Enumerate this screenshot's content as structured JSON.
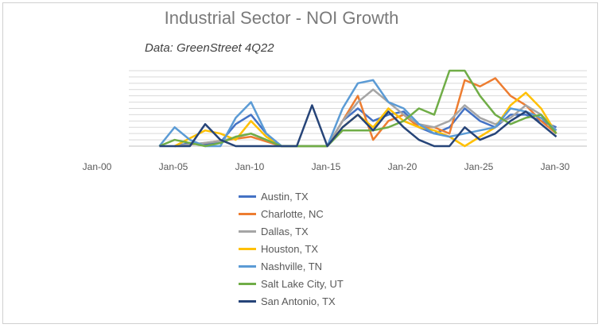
{
  "chart_data": {
    "type": "line",
    "title": "Industrial Sector - NOI Growth",
    "subtitle": "Data: GreenStreet 4Q22",
    "x_tick_labels": [
      "Jan-00",
      "Jan-05",
      "Jan-10",
      "Jan-15",
      "Jan-20",
      "Jan-25",
      "Jan-30"
    ],
    "x_range": [
      2000,
      2030
    ],
    "y_range": [
      0,
      12
    ],
    "grid": true,
    "legend_position": "bottom",
    "series": [
      {
        "name": "Austin, TX",
        "color": "#4472c4",
        "x": [
          2003,
          2004,
          2005,
          2006,
          2007,
          2008,
          2009,
          2010,
          2011,
          2012,
          2013,
          2014,
          2015,
          2016,
          2017,
          2018,
          2019,
          2020,
          2021,
          2022,
          2023,
          2024,
          2025,
          2026,
          2027,
          2028
        ],
        "y": [
          0,
          0.5,
          0.3,
          0.6,
          3.5,
          5,
          2,
          0,
          0,
          0,
          0,
          4,
          6,
          4,
          5,
          5.5,
          3,
          2,
          3,
          6,
          4,
          3,
          5,
          5,
          4,
          3
        ]
      },
      {
        "name": "Charlotte, NC",
        "color": "#ed7d31",
        "x": [
          2003,
          2005,
          2008,
          2010,
          2012,
          2013,
          2014,
          2015,
          2016,
          2017,
          2018,
          2019,
          2020,
          2021,
          2022,
          2023,
          2024,
          2025,
          2026,
          2027,
          2028
        ],
        "y": [
          0,
          0.5,
          1.5,
          0,
          0,
          0,
          4,
          8,
          1,
          4,
          5,
          3,
          3,
          2,
          10.5,
          9.5,
          10.8,
          8,
          6.5,
          4,
          2
        ]
      },
      {
        "name": "Dallas, TX",
        "color": "#a5a5a5",
        "x": [
          2003,
          2006,
          2008,
          2010,
          2012,
          2013,
          2014,
          2015,
          2016,
          2017,
          2018,
          2019,
          2020,
          2021,
          2022,
          2023,
          2024,
          2025,
          2026,
          2027,
          2028
        ],
        "y": [
          0,
          0.8,
          2,
          0,
          0,
          0,
          4,
          7,
          9,
          7,
          5,
          3.5,
          3,
          4,
          6.5,
          4.5,
          3.5,
          4.5,
          6.5,
          5,
          2.5
        ]
      },
      {
        "name": "Houston, TX",
        "color": "#ffc000",
        "x": [
          2003,
          2005,
          2006,
          2007,
          2008,
          2009,
          2010,
          2012,
          2013,
          2014,
          2015,
          2016,
          2017,
          2018,
          2019,
          2020,
          2021,
          2022,
          2023,
          2024,
          2025,
          2026,
          2027,
          2028
        ],
        "y": [
          0,
          2.5,
          2,
          1,
          4,
          1.5,
          0,
          0,
          0,
          3,
          5,
          3,
          6,
          4,
          3,
          2.5,
          1.5,
          0,
          1.5,
          3,
          6.5,
          8.5,
          6,
          2
        ]
      },
      {
        "name": "Nashville, TN",
        "color": "#5b9bd5",
        "x": [
          2002,
          2003,
          2004,
          2005,
          2006,
          2007,
          2008,
          2009,
          2010,
          2012,
          2013,
          2014,
          2015,
          2016,
          2017,
          2018,
          2019,
          2020,
          2021,
          2022,
          2023,
          2024,
          2025,
          2026,
          2027,
          2028
        ],
        "y": [
          0,
          3,
          1,
          0,
          0,
          4.5,
          7,
          2,
          0,
          0,
          0,
          6,
          10,
          10.5,
          7,
          6,
          3.5,
          2,
          1.5,
          2,
          2.5,
          3,
          6,
          5.5,
          4.5,
          2.5
        ]
      },
      {
        "name": "Salt Lake City, UT",
        "color": "#70ad47",
        "x": [
          2002,
          2003,
          2005,
          2006,
          2007,
          2008,
          2009,
          2010,
          2012,
          2013,
          2014,
          2015,
          2016,
          2017,
          2018,
          2019,
          2020,
          2021,
          2022,
          2023,
          2024,
          2025,
          2026,
          2027,
          2028
        ],
        "y": [
          0,
          1,
          0,
          0.5,
          1.5,
          2,
          1,
          0,
          0,
          0,
          2.5,
          2.5,
          2.5,
          3,
          4,
          6,
          5,
          12,
          12,
          8,
          5,
          3.5,
          4.5,
          5,
          2
        ]
      },
      {
        "name": "San Antonio, TX",
        "color": "#264478",
        "x": [
          2002,
          2004,
          2005,
          2006,
          2007,
          2008,
          2009,
          2010,
          2011,
          2012,
          2013,
          2014,
          2015,
          2016,
          2017,
          2018,
          2019,
          2020,
          2021,
          2022,
          2023,
          2024,
          2025,
          2026,
          2027,
          2028
        ],
        "y": [
          0,
          0,
          3.5,
          1,
          0,
          0,
          0,
          0,
          0,
          6.5,
          0,
          3,
          5,
          2.5,
          5.5,
          3,
          1,
          0,
          0,
          3,
          1,
          2,
          4,
          5.5,
          3.5,
          1.5
        ]
      }
    ]
  }
}
